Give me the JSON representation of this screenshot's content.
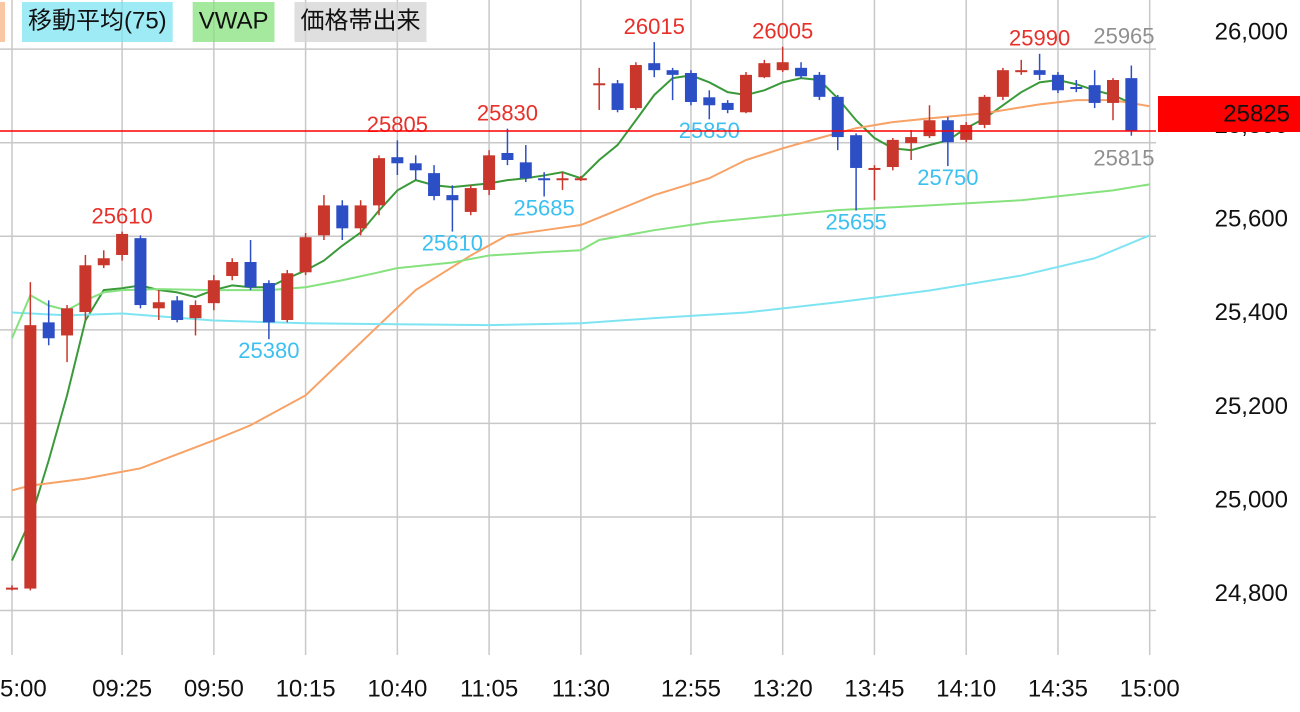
{
  "chart_data": {
    "type": "candlestick",
    "categories": [
      "5:00",
      null,
      null,
      null,
      null,
      null,
      "09:25",
      null,
      null,
      null,
      null,
      "09:50",
      null,
      null,
      null,
      null,
      "10:15",
      null,
      null,
      null,
      null,
      "10:40",
      null,
      null,
      null,
      null,
      "11:05",
      null,
      null,
      null,
      null,
      "11:30",
      null,
      null,
      null,
      null,
      null,
      "12:55",
      null,
      null,
      null,
      null,
      "13:20",
      null,
      null,
      null,
      null,
      "13:45",
      null,
      null,
      null,
      null,
      "14:10",
      null,
      null,
      null,
      null,
      "14:35",
      null,
      null,
      null,
      null,
      "15:00"
    ],
    "open": [
      24847,
      24847,
      25416,
      25388,
      25438,
      25538,
      25560,
      25596,
      25446,
      25463,
      25425,
      25457,
      25515,
      25545,
      25500,
      25421,
      25523,
      25602,
      25666,
      25617,
      25666,
      25769,
      25756,
      25735,
      25688,
      25652,
      25699,
      25778,
      25758,
      25724,
      25722,
      25722,
      25925,
      25927,
      25874,
      25970,
      25955,
      25949,
      25897,
      25885,
      25865,
      25940,
      25955,
      25960,
      25945,
      25898,
      25816,
      25744,
      25748,
      25799,
      25814,
      25848,
      25806,
      25838,
      25898,
      25953,
      25955,
      25945,
      25919,
      25923,
      25885,
      25938,
      null
    ],
    "high": [
      24854,
      25502,
      25463,
      25453,
      25560,
      25570,
      25610,
      25602,
      25485,
      25472,
      25463,
      25517,
      25553,
      25592,
      25506,
      25528,
      25607,
      25688,
      25677,
      25677,
      25773,
      25805,
      25773,
      25752,
      25709,
      25709,
      25784,
      25830,
      25795,
      25737,
      25737,
      25729,
      25960,
      25934,
      25972,
      26015,
      25960,
      25955,
      25912,
      25891,
      25951,
      25977,
      26005,
      25972,
      25951,
      25902,
      25820,
      25752,
      25810,
      25827,
      25880,
      25855,
      25844,
      25902,
      25960,
      25977,
      25990,
      25951,
      25934,
      25955,
      25938,
      25965,
      null
    ],
    "low": [
      24843,
      24843,
      25367,
      25331,
      25421,
      25532,
      25548,
      25446,
      25421,
      25416,
      25388,
      25442,
      25506,
      25485,
      25380,
      25416,
      25517,
      25592,
      25592,
      25602,
      25645,
      25731,
      25720,
      25677,
      25610,
      25645,
      25688,
      25752,
      25716,
      25685,
      25699,
      25718,
      25870,
      25865,
      25870,
      25940,
      25891,
      25880,
      25850,
      25863,
      25863,
      25938,
      25951,
      25938,
      25891,
      25784,
      25655,
      25677,
      25741,
      25763,
      25810,
      25750,
      25801,
      25831,
      25891,
      25945,
      25934,
      25906,
      25908,
      25874,
      25848,
      25815,
      null
    ],
    "close": [
      24849,
      25410,
      25382,
      25446,
      25538,
      25553,
      25605,
      25453,
      25459,
      25421,
      25453,
      25506,
      25545,
      25491,
      25416,
      25521,
      25598,
      25666,
      25617,
      25666,
      25767,
      25756,
      25741,
      25686,
      25677,
      25703,
      25773,
      25763,
      25724,
      25720,
      25724,
      25724,
      25927,
      25870,
      25966,
      25955,
      25945,
      25887,
      25880,
      25870,
      25945,
      25970,
      25972,
      25942,
      25898,
      25812,
      25746,
      25746,
      25806,
      25812,
      25848,
      25801,
      25838,
      25898,
      25955,
      25955,
      25945,
      25912,
      25917,
      25885,
      25934,
      25825,
      null
    ],
    "up_color": "#c9372c",
    "down_color": "#2d4fc6",
    "series": [
      {
        "color": "#3a9a3a",
        "values": [
          24907,
          24993,
          25121,
          25260,
          25420,
          25485,
          25489,
          25495,
          25485,
          25480,
          25470,
          25485,
          25495,
          25491,
          25491,
          25510,
          25527,
          25548,
          25580,
          25608,
          25655,
          25698,
          25720,
          25709,
          25705,
          25709,
          25713,
          25720,
          25724,
          25730,
          25737,
          25724,
          25763,
          25795,
          25848,
          25902,
          25938,
          25944,
          25929,
          25908,
          25902,
          25912,
          25929,
          25938,
          25934,
          25895,
          25848,
          25810,
          25788,
          25784,
          25795,
          25805,
          25831,
          25852,
          25880,
          25908,
          25929,
          25934,
          25925,
          25912,
          25902,
          25884,
          null
        ]
      },
      {
        "color": "#f7a267",
        "x": [
          0,
          1,
          4,
          7,
          11,
          13,
          16,
          18,
          20,
          22,
          25,
          27,
          29,
          31,
          33,
          35,
          38,
          40,
          42,
          44,
          46,
          48,
          50,
          53,
          56,
          58,
          60,
          62
        ],
        "values": [
          25057,
          25067,
          25082,
          25104,
          25164,
          25196,
          25260,
          25335,
          25410,
          25485,
          25559,
          25602,
          25613,
          25624,
          25656,
          25688,
          25724,
          25763,
          25788,
          25810,
          25831,
          25844,
          25852,
          25863,
          25882,
          25891,
          25891,
          25878
        ]
      },
      {
        "name": "移動平均(75)",
        "color": "#7fe4f2",
        "x": [
          0,
          3,
          6,
          11,
          16,
          21,
          26,
          31,
          35,
          40,
          45,
          50,
          55,
          59,
          62
        ],
        "values": [
          25437,
          25431,
          25435,
          25420,
          25414,
          25412,
          25410,
          25414,
          25425,
          25437,
          25459,
          25484,
          25516,
          25553,
          25602
        ]
      },
      {
        "name": "VWAP",
        "color": "#86e27e",
        "x": [
          0,
          1,
          2,
          3,
          4,
          5,
          6,
          8,
          11,
          14,
          16,
          18,
          20,
          21,
          24,
          26,
          29,
          31,
          32,
          35,
          38,
          42,
          45,
          50,
          55,
          60,
          62
        ],
        "values": [
          25382,
          25474,
          25452,
          25442,
          25463,
          25480,
          25485,
          25487,
          25485,
          25485,
          25491,
          25506,
          25523,
          25532,
          25544,
          25559,
          25566,
          25570,
          25592,
          25613,
          25630,
          25645,
          25656,
          25666,
          25677,
          25698,
          25711
        ]
      }
    ],
    "overlays": [
      {
        "name": "価格帯出来",
        "color": "#d4d4d4"
      }
    ],
    "high_labels": {
      "color": "#e8302a",
      "points": [
        {
          "x": 6,
          "value": 25610
        },
        {
          "x": 21,
          "value": 25805
        },
        {
          "x": 27,
          "value": 25830
        },
        {
          "x": 35,
          "value": 26015
        },
        {
          "x": 42,
          "value": 26005
        },
        {
          "x": 56,
          "value": 25990
        }
      ]
    },
    "low_labels": {
      "color": "#3cc0f0",
      "points": [
        {
          "x": 14,
          "value": 25380
        },
        {
          "x": 24,
          "value": 25610
        },
        {
          "x": 29,
          "value": 25685
        },
        {
          "x": 38,
          "value": 25850
        },
        {
          "x": 46,
          "value": 25655
        },
        {
          "x": 51,
          "value": 25750
        }
      ]
    },
    "latest_labels": {
      "color": "#909090",
      "points": [
        {
          "x": 61,
          "value": 25965
        },
        {
          "x": 61,
          "value": 25815
        }
      ]
    },
    "last_price": 25825,
    "last_price_color": "#ff0000",
    "ylim": [
      24705,
      26105
    ],
    "yticks": [
      {
        "value": 24800,
        "label": "24,800"
      },
      {
        "value": 25000,
        "label": "25,000"
      },
      {
        "value": 25200,
        "label": "25,200"
      },
      {
        "value": 25400,
        "label": "25,400"
      },
      {
        "value": 25600,
        "label": "25,600"
      },
      {
        "value": 25800,
        "label": "25,800"
      },
      {
        "value": 26000,
        "label": "26,000"
      }
    ],
    "grid": true
  }
}
